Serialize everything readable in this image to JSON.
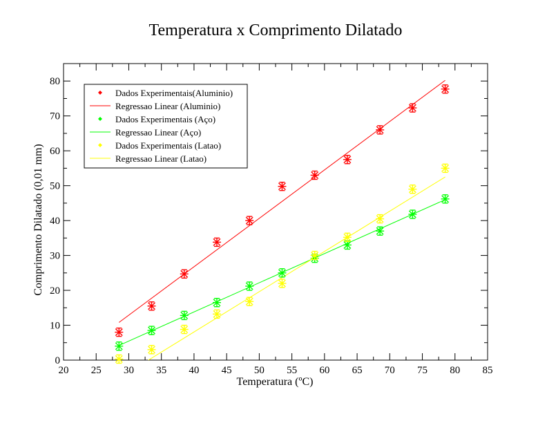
{
  "chart_data": {
    "type": "scatter",
    "title": "Temperatura x Comprimento Dilatado",
    "xlabel": "Temperatura (ºC)",
    "ylabel": "Comprimento Dilatado (0,01 mm)",
    "xlim": [
      20,
      85
    ],
    "ylim": [
      0,
      85
    ],
    "xticks": [
      20,
      25,
      30,
      35,
      40,
      45,
      50,
      55,
      60,
      65,
      70,
      75,
      80,
      85
    ],
    "yticks": [
      0,
      10,
      20,
      30,
      40,
      50,
      60,
      70,
      80
    ],
    "grid": false,
    "legend_position": "top-left",
    "series": [
      {
        "name": "Dados Experimentais(Aluminio)",
        "kind": "points",
        "color": "#ff0000",
        "x": [
          28.5,
          33.5,
          38.5,
          43.5,
          48.5,
          53.5,
          58.5,
          63.5,
          68.5,
          73.5,
          78.5
        ],
        "y": [
          8,
          15.5,
          24.7,
          33.8,
          40,
          49.8,
          53,
          57.5,
          66,
          72.3,
          77.7
        ]
      },
      {
        "name": "Regressao Linear (Aluminio)",
        "kind": "line",
        "color": "#ff0000",
        "x": [
          28.5,
          78.5
        ],
        "y": [
          10.8,
          80.2
        ]
      },
      {
        "name": "Dados Experimentais (Aço)",
        "kind": "points",
        "color": "#00ff00",
        "x": [
          28.5,
          33.5,
          38.5,
          43.5,
          48.5,
          53.5,
          58.5,
          63.5,
          68.5,
          73.5,
          78.5
        ],
        "y": [
          4,
          8.5,
          12.8,
          16.5,
          21.2,
          25,
          29.2,
          33,
          37,
          41.8,
          46.2
        ]
      },
      {
        "name": "Regressao Linear (Aço)",
        "kind": "line",
        "color": "#00ff00",
        "x": [
          28.5,
          78.5
        ],
        "y": [
          4.2,
          46
        ]
      },
      {
        "name": "Dados Experimentais (Latao)",
        "kind": "points",
        "color": "#ffff00",
        "x": [
          28.5,
          33.5,
          38.5,
          43.5,
          48.5,
          53.5,
          58.5,
          63.5,
          68.5,
          73.5,
          78.5
        ],
        "y": [
          0.3,
          3,
          8.8,
          13.2,
          16.8,
          22,
          30,
          35.2,
          40.5,
          49,
          55
        ]
      },
      {
        "name": "Regressao Linear (Latao)",
        "kind": "line",
        "color": "#ffff00",
        "x": [
          28.5,
          78.5
        ],
        "y": [
          -5.2,
          52.5
        ]
      }
    ]
  }
}
